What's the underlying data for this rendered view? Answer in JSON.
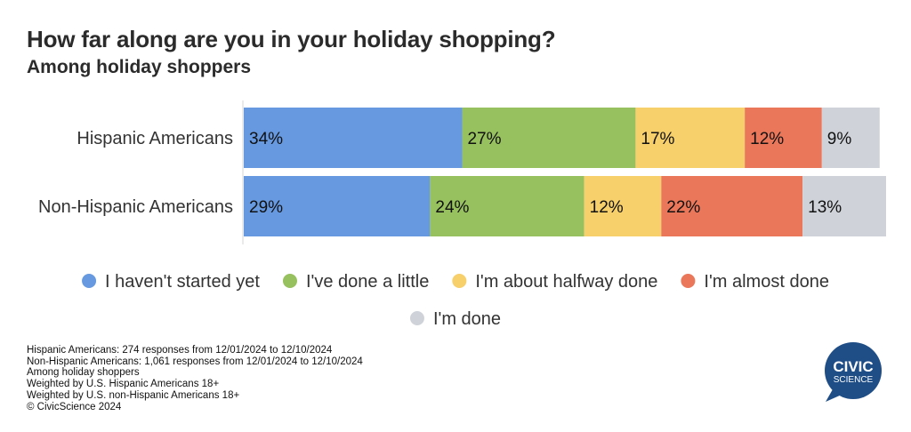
{
  "title": "How far along are you in your holiday shopping?",
  "subtitle": "Among holiday shoppers",
  "chart_data": {
    "type": "bar",
    "orientation": "horizontal",
    "stacked": true,
    "categories": [
      "Hispanic Americans",
      "Non-Hispanic Americans"
    ],
    "series": [
      {
        "name": "I haven't started yet",
        "color": "#6699e0",
        "values": [
          34,
          29
        ]
      },
      {
        "name": "I've done a little",
        "color": "#97c05e",
        "values": [
          27,
          24
        ]
      },
      {
        "name": "I'm about halfway done",
        "color": "#f7cf6b",
        "values": [
          17,
          12
        ]
      },
      {
        "name": "I'm almost done",
        "color": "#eb775a",
        "values": [
          12,
          22
        ]
      },
      {
        "name": "I'm done",
        "color": "#cfd3d9",
        "values": [
          9,
          13
        ]
      }
    ],
    "value_suffix": "%",
    "xlim": [
      0,
      100
    ],
    "legend_position": "bottom"
  },
  "notes": [
    "Hispanic Americans: 274 responses from 12/01/2024 to 12/10/2024",
    "Non-Hispanic Americans: 1,061 responses from 12/01/2024 to 12/10/2024",
    "Among holiday shoppers",
    "Weighted by U.S. Hispanic Americans 18+",
    "Weighted by U.S. non-Hispanic Americans 18+",
    "© CivicScience 2024"
  ],
  "logo": {
    "line1": "CIVIC",
    "line2": "SCIENCE",
    "color": "#1f4e87"
  }
}
